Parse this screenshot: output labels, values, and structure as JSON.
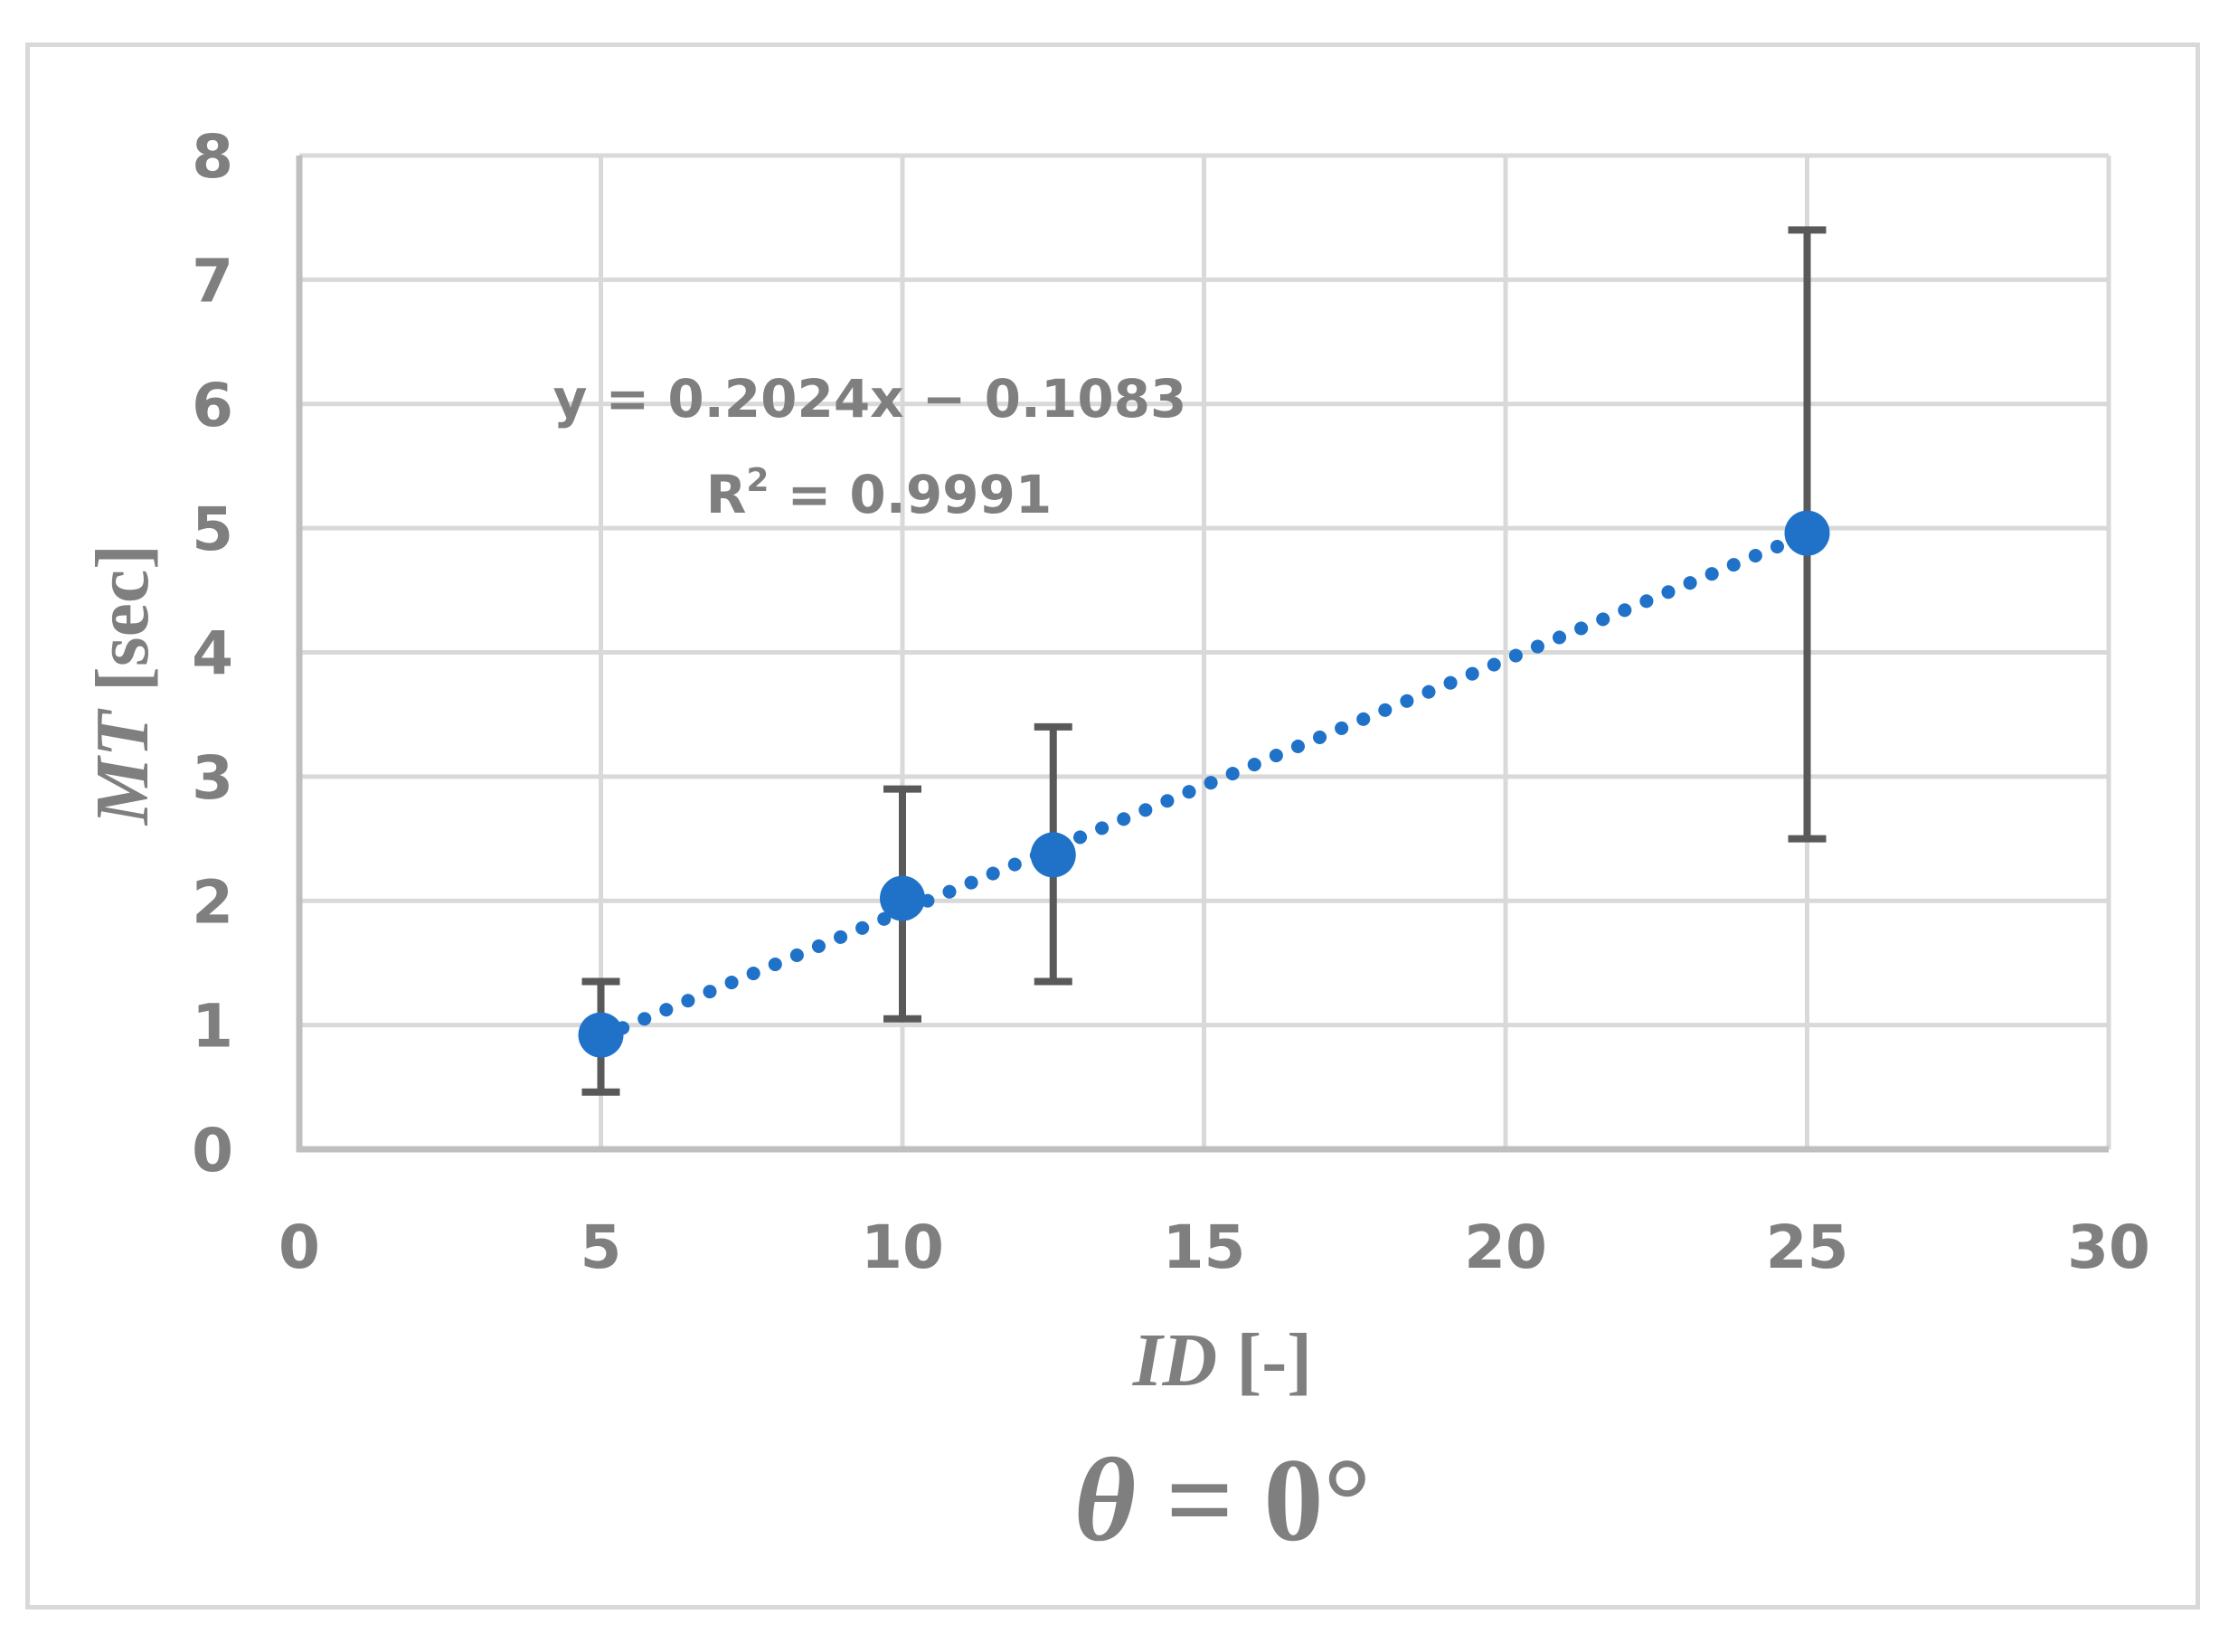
{
  "chart_data": {
    "type": "scatter",
    "title": "θ = 0°",
    "xlabel": "ID [-]",
    "xlabel_italic_part": "ID",
    "xlabel_unit_part": "[-]",
    "ylabel": "MT [sec]",
    "ylabel_italic_part": "MT",
    "ylabel_unit_part": "[sec]",
    "xlim": [
      0,
      30
    ],
    "ylim": [
      0,
      8
    ],
    "xticks": [
      0,
      5,
      10,
      15,
      20,
      25,
      30
    ],
    "yticks": [
      0,
      1,
      2,
      3,
      4,
      5,
      6,
      7,
      8
    ],
    "grid": true,
    "legend": null,
    "series": [
      {
        "name": "MT",
        "x": [
          5,
          10,
          12.5,
          25
        ],
        "y": [
          0.92,
          2.02,
          2.37,
          4.96
        ],
        "error_low": [
          0.46,
          1.05,
          1.35,
          2.5
        ],
        "error_high": [
          1.35,
          2.9,
          3.4,
          7.4
        ],
        "marker_color": "#1f72c8",
        "error_bar_color": "#595959"
      }
    ],
    "trendline": {
      "type": "linear",
      "style": "dotted",
      "color": "#1f72c8",
      "slope": 0.2024,
      "intercept": -0.1083,
      "x_range": [
        5,
        25
      ],
      "equation_text": "y = 0.2024x − 0.1083",
      "r2_prefix": "R",
      "r2_sup": "2",
      "r2_suffix": " = 0.9991",
      "r2_text": "R² = 0.9991"
    },
    "annotations": [
      "y = 0.2024x − 0.1083",
      "R² = 0.9991",
      "θ = 0°"
    ]
  },
  "colors": {
    "frame": "#d9d9d9",
    "grid": "#d9d9d9",
    "axis": "#bfbfbf",
    "text": "#7f7f7f",
    "marker": "#1f72c8",
    "error_bar": "#595959"
  },
  "caption": {
    "theta_symbol": "θ",
    "equals": " = ",
    "value": "0°"
  }
}
